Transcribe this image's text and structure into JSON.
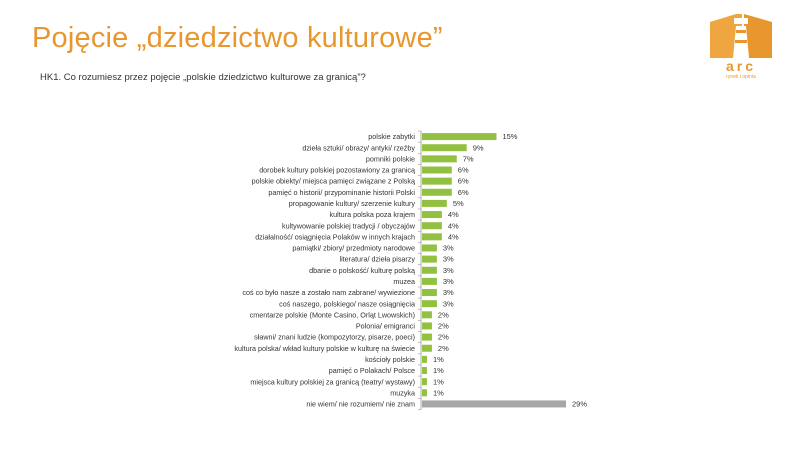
{
  "header": {
    "title": "Pojęcie „dziedzictwo kulturowe”",
    "question": "HK1. Co rozumiesz przez pojęcie „polskie dziedzictwo kulturowe za granicą”?"
  },
  "logo": {
    "name": "arc",
    "subtitle": "rynek i opinia"
  },
  "colors": {
    "title": "#e8962e",
    "bar": "#92c141",
    "bar_highlight": "#a6a6a6",
    "axis": "#999999",
    "label": "#333333"
  },
  "chart_data": {
    "type": "bar",
    "orientation": "horizontal",
    "title": "",
    "xlabel": "",
    "ylabel": "",
    "xlim": [
      0,
      29
    ],
    "value_suffix": "%",
    "categories": [
      "polskie zabytki",
      "dzieła sztuki/ obrazy/ antyki/ rzeźby",
      "pomniki polskie",
      "dorobek kultury polskiej pozostawiony za granicą",
      "polskie obiekty/ miejsca pamięci związane z Polską",
      "pamięć o historii/ przypominanie historii Polski",
      "propagowanie kultury/ szerzenie kultury",
      "kultura polska poza krajem",
      "kultywowanie polskiej tradycji / obyczajów",
      "działalność/ osiągnięcia Polaków w innych krajach",
      "pamiątki/ zbiory/ przedmioty narodowe",
      "literatura/ dzieła pisarzy",
      "dbanie o polskość/ kulturę polską",
      "muzea",
      "coś co było nasze a zostało nam zabrane/ wywiezione",
      "coś naszego, polskiego/ nasze osiągnięcia",
      "cmentarze polskie (Monte Casino, Orląt Lwowskich)",
      "Polonia/ emigranci",
      "sławni/ znani ludzie (kompozytorzy, pisarze, poeci)",
      "kultura polska/ wkład kultury polskie w kulturę na świecie",
      "kościoły polskie",
      "pamięć o Polakach/ Polsce",
      "miejsca kultury polskiej za granicą (teatry/ wystawy)",
      "muzyka",
      "nie wiem/ nie rozumiem/ nie znam"
    ],
    "values": [
      15,
      9,
      7,
      6,
      6,
      6,
      5,
      4,
      4,
      4,
      3,
      3,
      3,
      3,
      3,
      3,
      2,
      2,
      2,
      2,
      1,
      1,
      1,
      1,
      29
    ],
    "data_labels": [
      "15%",
      "9%",
      "7%",
      "6%",
      "6%",
      "6%",
      "5%",
      "4%",
      "4%",
      "4%",
      "3%",
      "3%",
      "3%",
      "3%",
      "3%",
      "3%",
      "2%",
      "2%",
      "2%",
      "2%",
      "1%",
      "1%",
      "1%",
      "1%",
      "29%"
    ],
    "highlight_index": 24
  }
}
